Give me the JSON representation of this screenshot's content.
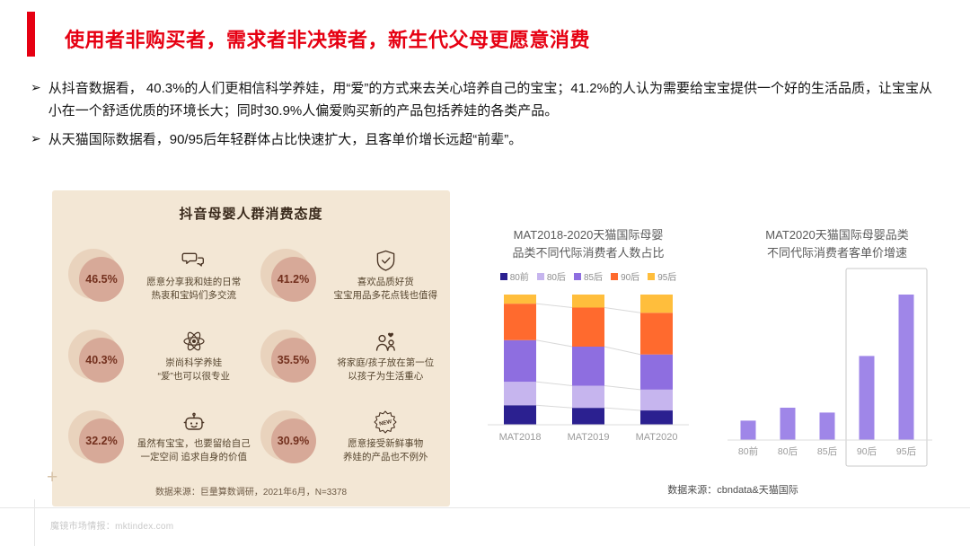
{
  "header": {
    "title": "使用者非购买者，需求者非决策者，新生代父母更愿意消费",
    "accent_color": "#e60012"
  },
  "bullets": [
    {
      "marker": "➢",
      "text": "从抖音数据看， 40.3%的人们更相信科学养娃，用“爱”的方式来去关心培养自己的宝宝；41.2%的人认为需要给宝宝提供一个好的生活品质，让宝宝从小在一个舒适优质的环境长大；同时30.9%人偏爱购买新的产品包括养娃的各类产品。"
    },
    {
      "marker": "➢",
      "text": "从天猫国际数据看，90/95后年轻群体占比快速扩大，且客单价增长远超“前辈”。"
    }
  ],
  "infographic": {
    "title": "抖音母婴人群消费态度",
    "card_bg": "#f3e7d5",
    "circle_color": "#d7a998",
    "items": [
      {
        "pct": "46.5%",
        "icon": "chat-icon",
        "lines": [
          "愿意分享我和娃的日常",
          "热衷和宝妈们多交流"
        ]
      },
      {
        "pct": "41.2%",
        "icon": "shield-icon",
        "lines": [
          "喜欢品质好货",
          "宝宝用品多花点钱也值得"
        ]
      },
      {
        "pct": "40.3%",
        "icon": "atom-icon",
        "lines": [
          "崇尚科学养娃",
          "“爱”也可以很专业"
        ]
      },
      {
        "pct": "35.5%",
        "icon": "family-icon",
        "lines": [
          "将家庭/孩子放在第一位",
          "以孩子为生活重心"
        ]
      },
      {
        "pct": "32.2%",
        "icon": "robot-icon",
        "lines": [
          "虽然有宝宝，也要留给自己",
          "一定空间 追求自身的价值"
        ]
      },
      {
        "pct": "30.9%",
        "icon": "new-badge-icon",
        "lines": [
          "愿意接受新鲜事物",
          "养娃的产品也不例外"
        ]
      }
    ],
    "source": "数据来源：巨量算数调研，2021年6月，N=3378"
  },
  "chart_data": [
    {
      "type": "bar",
      "subtype": "stacked-100",
      "title": [
        "MAT2018-2020天猫国际母婴",
        "品类不同代际消费者人数占比"
      ],
      "categories": [
        "MAT2018",
        "MAT2019",
        "MAT2020"
      ],
      "legend": [
        "80前",
        "80后",
        "85后",
        "90后",
        "95后"
      ],
      "legend_position": "top",
      "colors": [
        "#2b2090",
        "#c6b5ee",
        "#8e6ee0",
        "#ff6a2e",
        "#ffbe3c"
      ],
      "series": [
        {
          "name": "80前",
          "values": [
            15,
            13,
            11
          ]
        },
        {
          "name": "80后",
          "values": [
            18,
            17,
            16
          ]
        },
        {
          "name": "85后",
          "values": [
            32,
            30,
            27
          ]
        },
        {
          "name": "90后",
          "values": [
            28,
            30,
            32
          ]
        },
        {
          "name": "95后",
          "values": [
            7,
            10,
            14
          ]
        }
      ],
      "ylim": [
        0,
        100
      ],
      "grid": false
    },
    {
      "type": "bar",
      "title": [
        "MAT2020天猫国际母婴品类",
        "不同代际消费者客单价增速"
      ],
      "categories": [
        "80前",
        "80后",
        "85后",
        "90后",
        "95后"
      ],
      "values": [
        12,
        20,
        17,
        52,
        90
      ],
      "ylim": [
        0,
        100
      ],
      "bar_color": "#9f86e8",
      "highlight": [
        "90后",
        "95后"
      ],
      "grid": false
    }
  ],
  "charts_source": "数据来源：cbndata&天猫国际",
  "footer": {
    "watermark": "魔镜市场情报：mktindex.com",
    "guide_cross": "+"
  }
}
